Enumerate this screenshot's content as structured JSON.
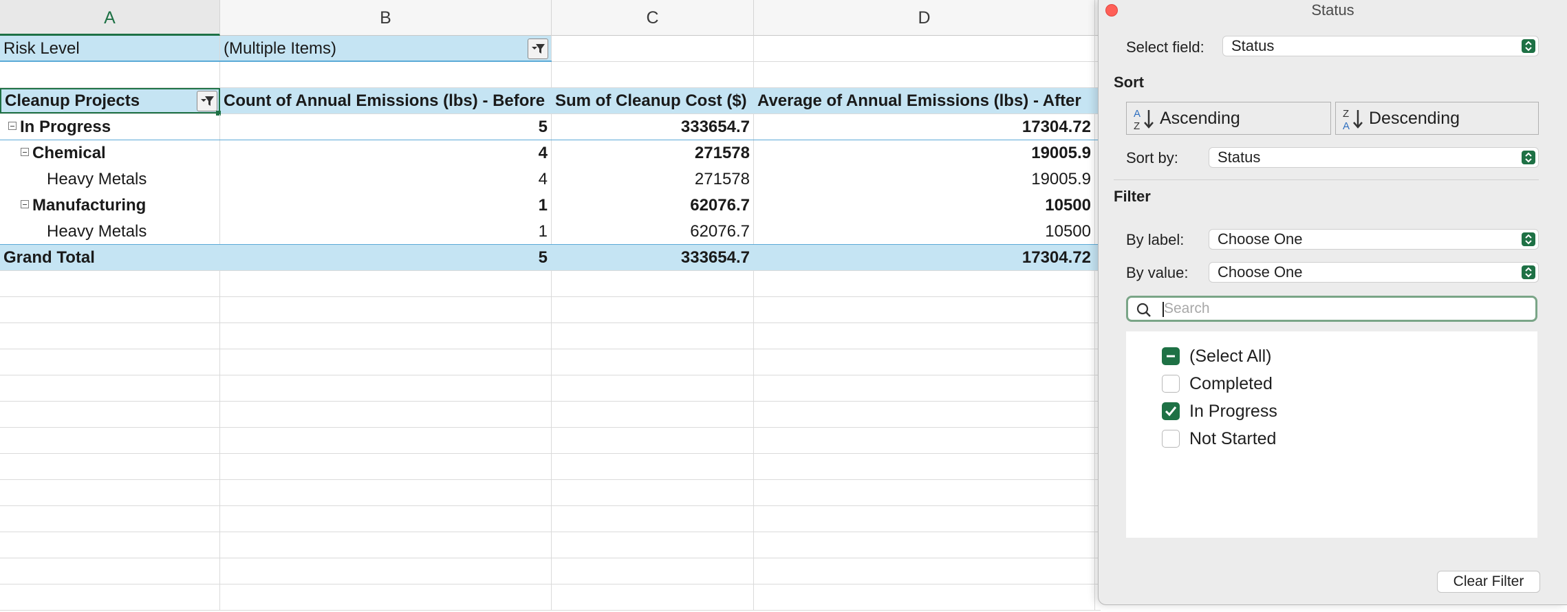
{
  "sheet": {
    "columns": [
      "A",
      "B",
      "C",
      "D"
    ],
    "filter_row": {
      "label": "Risk Level",
      "value": "(Multiple Items)"
    },
    "pivot_headers": {
      "row_label": "Cleanup Projects",
      "col_b": "Count of Annual Emissions (lbs) - Before",
      "col_c": "Sum of Cleanup Cost ($)",
      "col_d": "Average of Annual Emissions (lbs) - After"
    },
    "rows": [
      {
        "label": "In Progress",
        "b": "5",
        "c": "333654.7",
        "d": "17304.72"
      },
      {
        "label": "Chemical",
        "b": "4",
        "c": "271578",
        "d": "19005.9"
      },
      {
        "label": "Heavy Metals",
        "b": "4",
        "c": "271578",
        "d": "19005.9"
      },
      {
        "label": "Manufacturing",
        "b": "1",
        "c": "62076.7",
        "d": "10500"
      },
      {
        "label": "Heavy Metals",
        "b": "1",
        "c": "62076.7",
        "d": "10500"
      },
      {
        "label": "Grand Total",
        "b": "5",
        "c": "333654.7",
        "d": "17304.72"
      }
    ]
  },
  "panel": {
    "title": "Status",
    "select_field_label": "Select field:",
    "select_field_value": "Status",
    "sort_heading": "Sort",
    "ascending_label": "Ascending",
    "descending_label": "Descending",
    "sort_by_label": "Sort by:",
    "sort_by_value": "Status",
    "filter_heading": "Filter",
    "by_label_label": "By label:",
    "by_label_value": "Choose One",
    "by_value_label": "By value:",
    "by_value_value": "Choose One",
    "search_placeholder": "Search",
    "items": [
      {
        "label": "(Select All)",
        "state": "mixed"
      },
      {
        "label": "Completed",
        "state": "unchecked"
      },
      {
        "label": "In Progress",
        "state": "checked"
      },
      {
        "label": "Not Started",
        "state": "unchecked"
      }
    ],
    "clear_filter_label": "Clear Filter"
  },
  "colors": {
    "accent": "#1e7145",
    "pivot_blue": "#c5e4f3",
    "close": "#ff5f57"
  }
}
